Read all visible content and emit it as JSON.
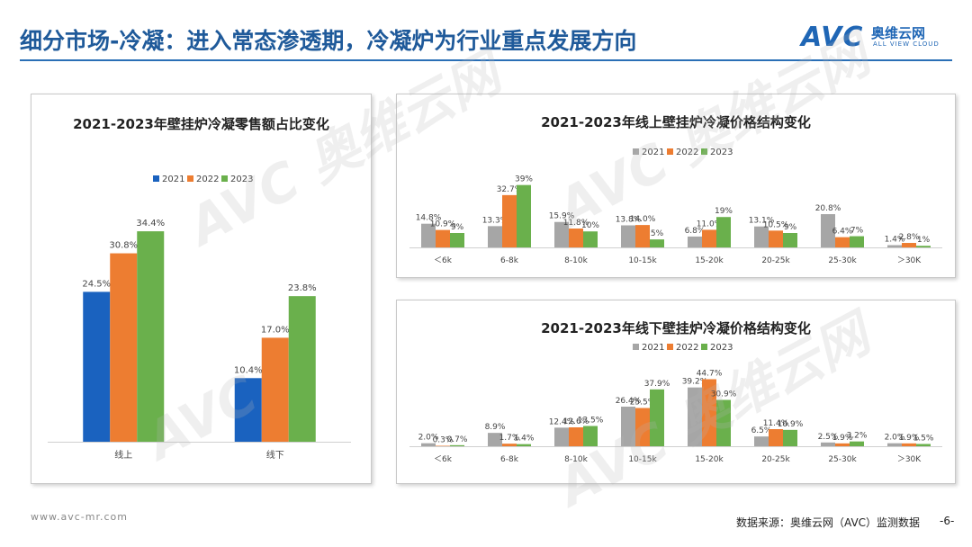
{
  "header": {
    "title": "细分市场-冷凝：进入常态渗透期，冷凝炉为行业重点发展方向"
  },
  "logo": {
    "mark": "AVC",
    "cn": "奥维云网",
    "en": "ALL VIEW CLOUD"
  },
  "footer": {
    "url": "www.avc-mr.com",
    "source": "数据来源：奥维云网（AVC）监测数据",
    "page": "-6-"
  },
  "colors": {
    "2021": "#1a62bf",
    "2022": "#ed7d31",
    "2023": "#6ab04c",
    "gray2021": "#a6a6a6"
  },
  "chart_data": [
    {
      "type": "bar",
      "title": "2021-2023年壁挂炉冷凝零售额占比变化",
      "categories": [
        "线上",
        "线下"
      ],
      "series": [
        {
          "name": "2021",
          "values": [
            24.5,
            10.4
          ],
          "labels": [
            "24.5%",
            "10.4%"
          ]
        },
        {
          "name": "2022",
          "values": [
            30.8,
            17.0
          ],
          "labels": [
            "30.8%",
            "17.0%"
          ]
        },
        {
          "name": "2023",
          "values": [
            34.4,
            23.8
          ],
          "labels": [
            "34.4%",
            "23.8%"
          ]
        }
      ],
      "ylim": [
        0,
        40
      ],
      "legend": "top-center",
      "grid": false
    },
    {
      "type": "bar",
      "title": "2021-2023年线上壁挂炉冷凝价格结构变化",
      "categories": [
        "＜6k",
        "6-8k",
        "8-10k",
        "10-15k",
        "15-20k",
        "20-25k",
        "25-30k",
        "＞30K"
      ],
      "series": [
        {
          "name": "2021",
          "values": [
            14.8,
            13.3,
            15.9,
            13.8,
            6.8,
            13.1,
            20.8,
            1.4
          ],
          "labels": [
            "14.8%",
            "13.3%",
            "15.9%",
            "13.8%",
            "6.8%",
            "13.1%",
            "20.8%",
            "1.4%"
          ]
        },
        {
          "name": "2022",
          "values": [
            10.9,
            32.7,
            11.8,
            14.0,
            11.0,
            10.5,
            6.4,
            2.8
          ],
          "labels": [
            "10.9%",
            "32.7%",
            "11.8%",
            "14.0%",
            "11.0%",
            "10.5%",
            "6.4%",
            "2.8%"
          ]
        },
        {
          "name": "2023",
          "values": [
            9,
            39,
            10,
            5,
            19,
            9,
            7,
            1
          ],
          "labels": [
            "9%",
            "39%",
            "10%",
            "5%",
            "19%",
            "9%",
            "7%",
            "1%"
          ]
        }
      ],
      "ylim": [
        0,
        45
      ],
      "legend": "top-center",
      "grid": false
    },
    {
      "type": "bar",
      "title": "2021-2023年线下壁挂炉冷凝价格结构变化",
      "categories": [
        "＜6k",
        "6-8k",
        "8-10k",
        "10-15k",
        "15-20k",
        "20-25k",
        "25-30k",
        "＞30K"
      ],
      "series": [
        {
          "name": "2021",
          "values": [
            2.0,
            8.9,
            12.4,
            26.4,
            39.2,
            6.5,
            2.5,
            2.0
          ],
          "labels": [
            "2.0%",
            "8.9%",
            "12.4%",
            "26.4%",
            "39.2%",
            "6.5%",
            "2.5%",
            "2.0%"
          ]
        },
        {
          "name": "2022",
          "values": [
            0.3,
            1.7,
            12.6,
            25.5,
            44.7,
            11.4,
            1.9,
            1.9
          ],
          "labels": [
            "0.3%",
            "1.7%",
            "12.6%",
            "25.5%",
            "44.7%",
            "11.4%",
            "1.9%",
            "1.9%"
          ]
        },
        {
          "name": "2023",
          "values": [
            0.7,
            1.4,
            13.5,
            37.9,
            30.9,
            10.9,
            3.2,
            1.5
          ],
          "labels": [
            "0.7%",
            "1.4%",
            "13.5%",
            "37.9%",
            "30.9%",
            "10.9%",
            "3.2%",
            "1.5%"
          ]
        }
      ],
      "ylim": [
        0,
        48
      ],
      "legend": "top-center",
      "grid": false
    }
  ]
}
